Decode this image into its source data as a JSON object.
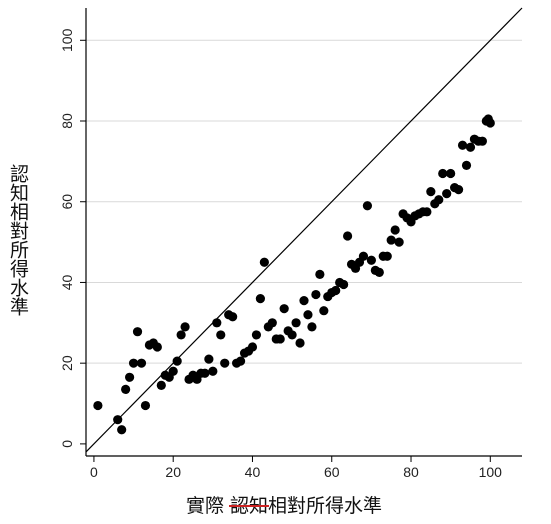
{
  "chart_data": {
    "type": "scatter",
    "xlabel_parts": [
      "實際 ",
      "認知",
      "相對所得水準"
    ],
    "ylabel": "認知相對所得水準",
    "xlim": [
      -2,
      108
    ],
    "ylim": [
      -3,
      108
    ],
    "x_ticks": [
      0,
      20,
      40,
      60,
      80,
      100
    ],
    "y_ticks": [
      0,
      20,
      40,
      60,
      80,
      100
    ],
    "grid": "horizontal",
    "reference_line": {
      "type": "y=x"
    },
    "strikethrough_color": "#cc2222",
    "marker_color": "#000000",
    "points": [
      [
        1,
        9.5
      ],
      [
        6,
        6
      ],
      [
        7,
        3.5
      ],
      [
        8,
        13.5
      ],
      [
        9,
        16.5
      ],
      [
        10,
        20
      ],
      [
        11,
        27.8
      ],
      [
        12,
        20
      ],
      [
        13,
        9.5
      ],
      [
        14,
        24.5
      ],
      [
        15,
        25
      ],
      [
        16,
        24
      ],
      [
        17,
        14.5
      ],
      [
        18,
        17
      ],
      [
        19,
        16.5
      ],
      [
        20,
        18
      ],
      [
        21,
        20.5
      ],
      [
        22,
        27
      ],
      [
        23,
        29
      ],
      [
        24,
        16
      ],
      [
        25,
        17
      ],
      [
        26,
        16
      ],
      [
        27,
        17.5
      ],
      [
        28,
        17.5
      ],
      [
        29,
        21
      ],
      [
        30,
        18
      ],
      [
        31,
        30
      ],
      [
        32,
        27
      ],
      [
        33,
        20
      ],
      [
        34,
        32
      ],
      [
        35,
        31.5
      ],
      [
        36,
        20
      ],
      [
        37,
        20.5
      ],
      [
        38,
        22.5
      ],
      [
        39,
        23
      ],
      [
        40,
        24
      ],
      [
        41,
        27
      ],
      [
        42,
        36
      ],
      [
        43,
        45
      ],
      [
        44,
        29
      ],
      [
        45,
        30
      ],
      [
        46,
        26
      ],
      [
        47,
        26
      ],
      [
        48,
        33.5
      ],
      [
        49,
        28
      ],
      [
        50,
        27
      ],
      [
        51,
        30
      ],
      [
        52,
        25
      ],
      [
        53,
        35.5
      ],
      [
        54,
        32
      ],
      [
        55,
        29
      ],
      [
        56,
        37
      ],
      [
        57,
        42
      ],
      [
        58,
        33
      ],
      [
        59,
        36.5
      ],
      [
        60,
        37.5
      ],
      [
        61,
        38
      ],
      [
        62,
        40
      ],
      [
        63,
        39.5
      ],
      [
        64,
        51.5
      ],
      [
        65,
        44.5
      ],
      [
        66,
        43.5
      ],
      [
        67,
        45
      ],
      [
        68,
        46.5
      ],
      [
        69,
        59
      ],
      [
        70,
        45.5
      ],
      [
        71,
        43
      ],
      [
        72,
        42.5
      ],
      [
        73,
        46.5
      ],
      [
        74,
        46.5
      ],
      [
        75,
        50.5
      ],
      [
        76,
        53
      ],
      [
        77,
        50
      ],
      [
        78,
        57
      ],
      [
        79,
        56
      ],
      [
        80,
        55
      ],
      [
        81,
        56.5
      ],
      [
        82,
        57
      ],
      [
        83,
        57.5
      ],
      [
        84,
        57.5
      ],
      [
        85,
        62.5
      ],
      [
        86,
        59.5
      ],
      [
        87,
        60.5
      ],
      [
        88,
        67
      ],
      [
        89,
        62
      ],
      [
        90,
        67
      ],
      [
        91,
        63.5
      ],
      [
        92,
        63
      ],
      [
        93,
        74
      ],
      [
        94,
        69
      ],
      [
        95,
        73.5
      ],
      [
        96,
        75.5
      ],
      [
        97,
        75
      ],
      [
        98,
        75
      ],
      [
        99,
        80
      ],
      [
        99.5,
        80.5
      ],
      [
        100,
        79.5
      ]
    ]
  }
}
